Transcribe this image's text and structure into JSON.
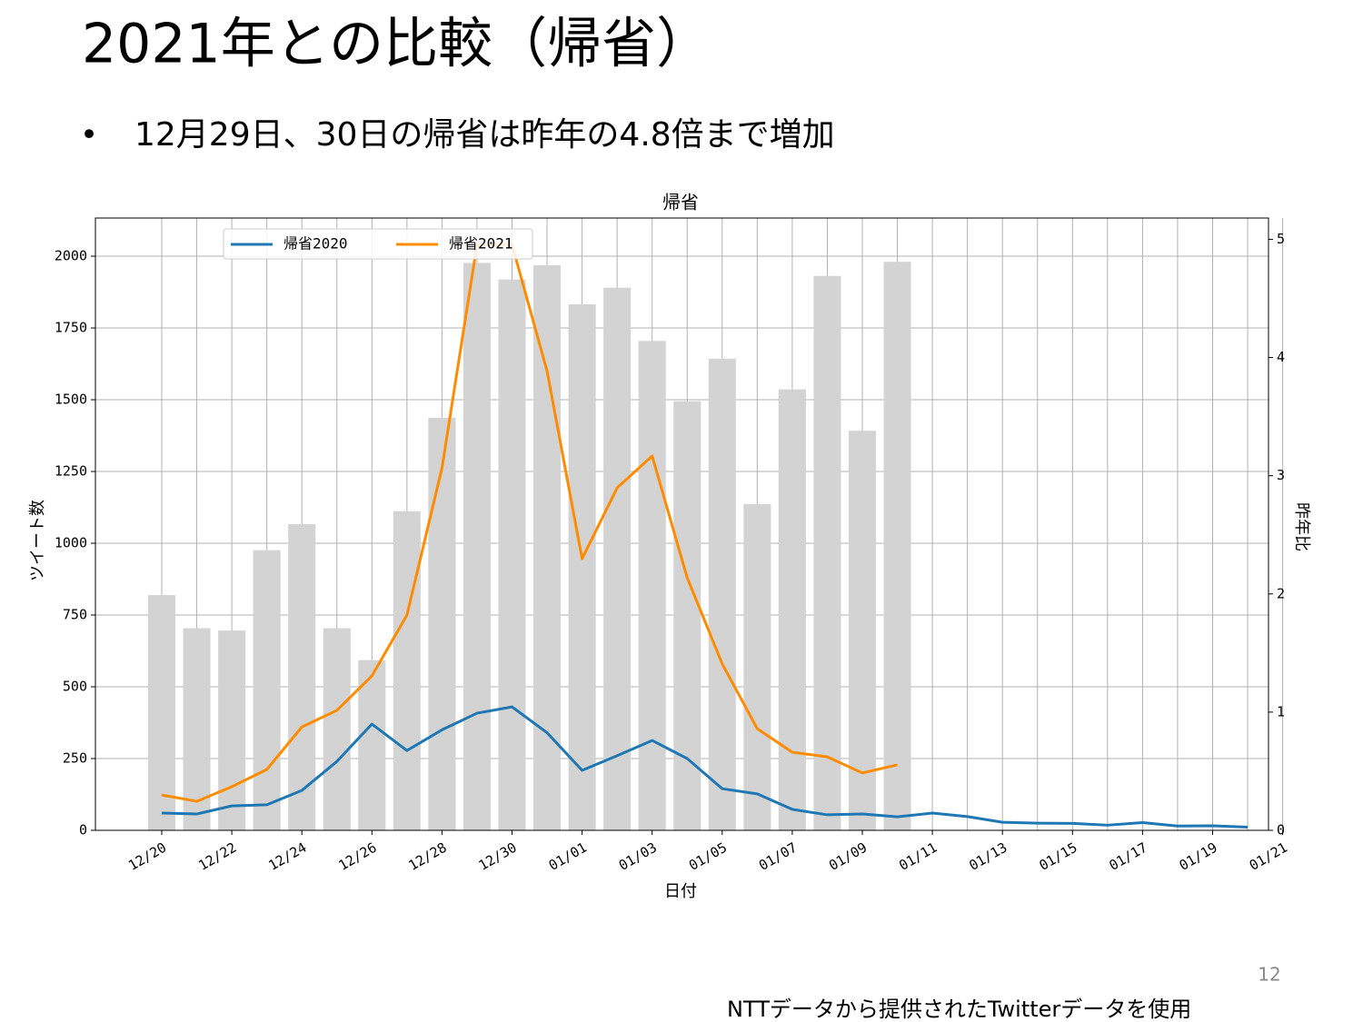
{
  "header": {
    "title": "2021年との比較（帰省）",
    "bullet": "12月29日、30日の帰省は昨年の4.8倍まで増加"
  },
  "footer": {
    "page_number": "12",
    "note": "NTTデータから提供されたTwitterデータを使用"
  },
  "chart_data": {
    "type": "bar-line",
    "title": "帰省",
    "xlabel": "日付",
    "ylabel": "ツイート数",
    "y2label": "昨年比",
    "x": [
      "12/20",
      "12/21",
      "12/22",
      "12/23",
      "12/24",
      "12/25",
      "12/26",
      "12/27",
      "12/28",
      "12/29",
      "12/30",
      "12/31",
      "01/01",
      "01/02",
      "01/03",
      "01/04",
      "01/05",
      "01/06",
      "01/07",
      "01/08",
      "01/09",
      "01/10",
      "01/11",
      "01/12",
      "01/13",
      "01/14",
      "01/15",
      "01/16",
      "01/17",
      "01/18",
      "01/19",
      "01/20",
      "01/21"
    ],
    "xticks": [
      "12/20",
      "12/22",
      "12/24",
      "12/26",
      "12/28",
      "12/30",
      "01/01",
      "01/03",
      "01/05",
      "01/07",
      "01/09",
      "01/11",
      "01/13",
      "01/15",
      "01/17",
      "01/19",
      "01/21"
    ],
    "ylim": [
      0,
      2133
    ],
    "yticks": [
      0,
      250,
      500,
      750,
      1000,
      1250,
      1500,
      1750,
      2000
    ],
    "y2lim": [
      0,
      5.18
    ],
    "y2ticks": [
      0,
      1,
      2,
      3,
      4,
      5
    ],
    "grid": true,
    "legend": "upper left",
    "series": [
      {
        "type": "bar",
        "axis": "y2",
        "color": "#d3d3d3",
        "values": [
          1.99,
          1.71,
          1.69,
          2.37,
          2.59,
          1.71,
          1.44,
          2.7,
          3.49,
          4.8,
          4.66,
          4.78,
          4.45,
          4.59,
          4.14,
          3.63,
          3.99,
          2.76,
          3.73,
          4.69,
          3.38,
          4.81,
          null,
          null,
          null,
          null,
          null,
          null,
          null,
          null,
          null,
          null,
          null
        ]
      },
      {
        "type": "line",
        "name": "帰省2020",
        "color": "#1f77b4",
        "values": [
          60,
          57,
          85,
          89,
          139,
          240,
          370,
          278,
          350,
          408,
          430,
          340,
          209,
          260,
          313,
          250,
          145,
          127,
          73,
          54,
          57,
          47,
          60,
          48,
          28,
          25,
          24,
          18,
          27,
          15,
          16,
          11,
          null
        ]
      },
      {
        "type": "line",
        "name": "帰省2021",
        "color": "#ff8c00",
        "values": [
          123,
          101,
          152,
          212,
          360,
          418,
          538,
          750,
          1262,
          2040,
          2040,
          1600,
          946,
          1193,
          1304,
          880,
          580,
          354,
          272,
          256,
          200,
          228,
          null,
          null,
          null,
          null,
          null,
          null,
          null,
          null,
          null,
          null,
          null
        ]
      }
    ]
  }
}
